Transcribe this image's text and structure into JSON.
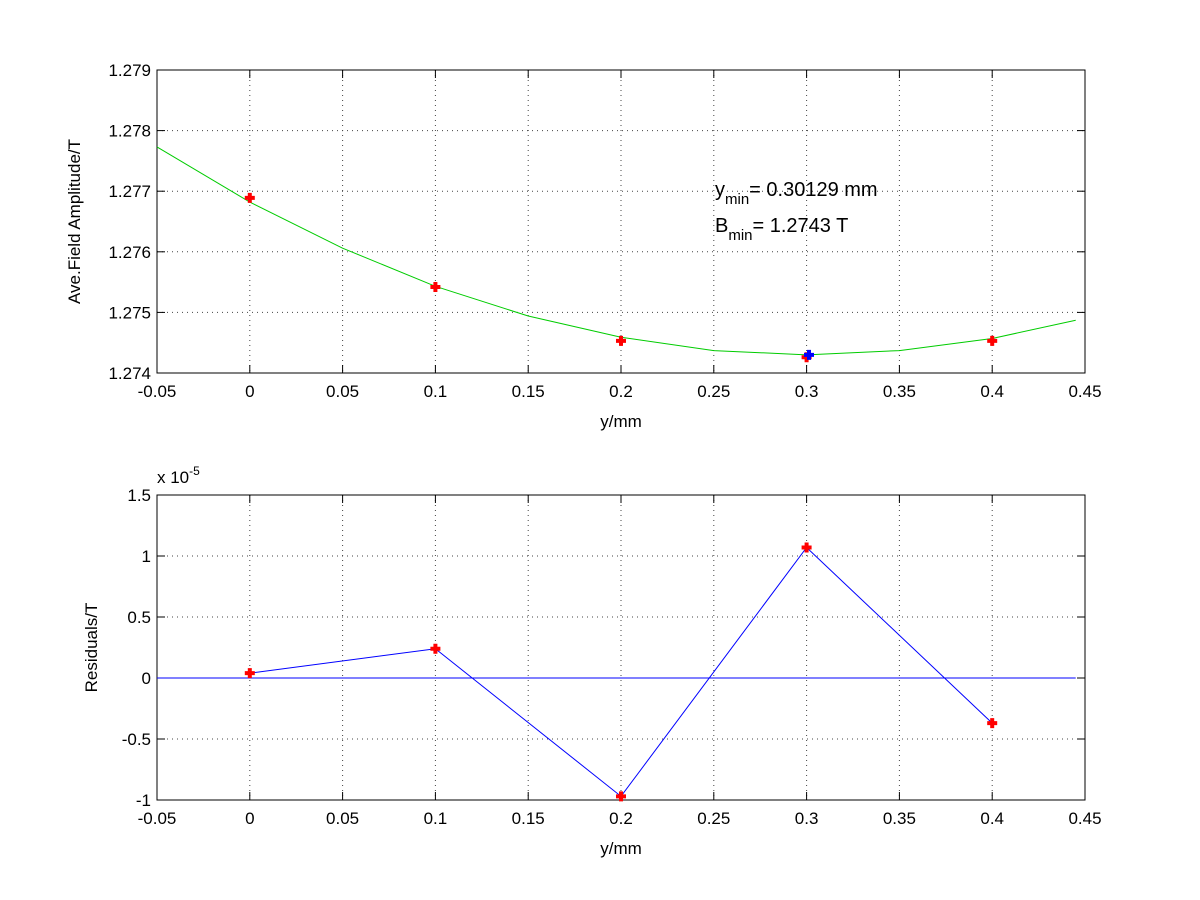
{
  "chart_data": [
    {
      "type": "scatter",
      "xlabel": "y/mm",
      "ylabel": "Ave.Field Amplitude/T",
      "xlim": [
        -0.05,
        0.45
      ],
      "xticks": [
        -0.05,
        0,
        0.05,
        0.1,
        0.15,
        0.2,
        0.25,
        0.3,
        0.35,
        0.4,
        0.45
      ],
      "ylim": [
        1.274,
        1.279
      ],
      "yticks": [
        1.274,
        1.275,
        1.276,
        1.277,
        1.278,
        1.279
      ],
      "grid": true,
      "series": [
        {
          "color": "#00cc00",
          "style": "line",
          "x": [
            -0.05,
            0,
            0.05,
            0.1,
            0.15,
            0.2,
            0.25,
            0.3,
            0.35,
            0.4,
            0.445
          ],
          "values": [
            1.27773,
            1.27682,
            1.27606,
            1.27543,
            1.27494,
            1.27459,
            1.27437,
            1.2743,
            1.27437,
            1.27457,
            1.27487
          ]
        },
        {
          "color": "#ff0000",
          "style": "marker",
          "x": [
            0,
            0.1,
            0.2,
            0.3,
            0.4
          ],
          "values": [
            1.27689,
            1.27542,
            1.27453,
            1.27426,
            1.27453
          ]
        },
        {
          "color": "#0000ff",
          "style": "marker",
          "x": [
            0.30129
          ],
          "values": [
            1.2743
          ]
        }
      ],
      "annotations": [
        {
          "text": "y",
          "sub": "min",
          "rest": "= 0.30129 mm"
        },
        {
          "text": "B",
          "sub": "min",
          "rest": "= 1.2743 T"
        }
      ]
    },
    {
      "type": "scatter",
      "xlabel": "y/mm",
      "ylabel": "Residuals/T",
      "exponent_label": {
        "base": "x 10",
        "exponent": "-5"
      },
      "xlim": [
        -0.05,
        0.45
      ],
      "xticks": [
        -0.05,
        0,
        0.05,
        0.1,
        0.15,
        0.2,
        0.25,
        0.3,
        0.35,
        0.4,
        0.45
      ],
      "ylim": [
        -1,
        1.5
      ],
      "yticks": [
        -1,
        -0.5,
        0,
        0.5,
        1,
        1.5
      ],
      "grid": true,
      "series": [
        {
          "color": "#0000ff",
          "style": "line",
          "x": [
            -0.05,
            0.445
          ],
          "values": [
            0,
            0
          ]
        },
        {
          "color": "#0000ff",
          "marker_color": "#ff0000",
          "style": "line+marker",
          "x": [
            0,
            0.1,
            0.2,
            0.3,
            0.4
          ],
          "values": [
            0.04,
            0.24,
            -0.97,
            1.07,
            -0.37
          ]
        }
      ]
    }
  ]
}
